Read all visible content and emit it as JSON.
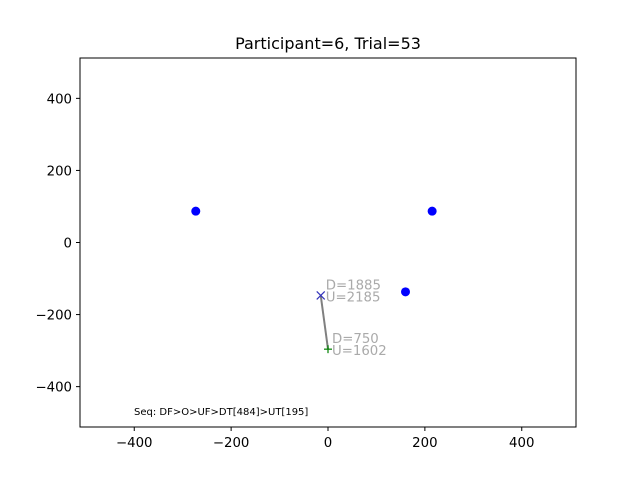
{
  "chart_data": {
    "type": "scatter",
    "title": "Participant=6, Trial=53",
    "xlabel": "",
    "ylabel": "",
    "xlim": [
      -512,
      512
    ],
    "ylim": [
      -512,
      512
    ],
    "xticks": [
      -400,
      -200,
      0,
      200,
      400
    ],
    "yticks": [
      -400,
      -200,
      0,
      200,
      400
    ],
    "xtick_labels": [
      "−400",
      "−200",
      "0",
      "200",
      "400"
    ],
    "ytick_labels": [
      "−400",
      "−200",
      "0",
      "200",
      "400"
    ],
    "grid": false,
    "colors": {
      "targets": "#0000ff",
      "path": "#808080",
      "end": "#3333bb",
      "start": "#008000",
      "annotation": "#aaaaaa"
    },
    "targets": [
      {
        "x": -273,
        "y": 87
      },
      {
        "x": 215,
        "y": 87
      },
      {
        "x": 160,
        "y": -137
      }
    ],
    "path": {
      "x": [
        -15,
        0
      ],
      "y": [
        -147,
        -296
      ]
    },
    "start": {
      "x": 0,
      "y": -296,
      "marker": "+",
      "labels": [
        "D=750",
        "U=1602"
      ]
    },
    "end": {
      "x": -15,
      "y": -147,
      "marker": "x",
      "labels": [
        "D=1885",
        "U=2185"
      ]
    },
    "sequence": "Seq: DF>O>UF>DT[484]>UT[195]"
  }
}
